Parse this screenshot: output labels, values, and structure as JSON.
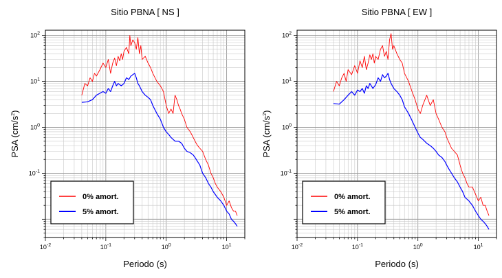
{
  "chart_data": [
    {
      "type": "line",
      "title": "Sitio PBNA [ NS ]",
      "xlabel": "Periodo (s)",
      "ylabel_main": "PSA (cm/s",
      "ylabel_sup": "2",
      "ylabel_tail": ")",
      "xscale": "log",
      "yscale": "log",
      "xlim": [
        0.01,
        20
      ],
      "ylim": [
        0.004,
        130
      ],
      "grid": true,
      "legend_position": "bottom-left",
      "xticks": [
        {
          "base": "10",
          "exp": "-2"
        },
        {
          "base": "10",
          "exp": "-1"
        },
        {
          "base": "10",
          "exp": "0"
        },
        {
          "base": "10",
          "exp": "1"
        }
      ],
      "yticks": [
        {
          "base": "10",
          "exp": "-1"
        },
        {
          "base": "10",
          "exp": "0"
        },
        {
          "base": "10",
          "exp": "1"
        },
        {
          "base": "10",
          "exp": "2"
        }
      ],
      "series": [
        {
          "name": "0% amort.",
          "color": "#ff0000",
          "x": [
            0.04,
            0.045,
            0.05,
            0.055,
            0.06,
            0.065,
            0.07,
            0.08,
            0.09,
            0.1,
            0.11,
            0.12,
            0.13,
            0.14,
            0.15,
            0.16,
            0.17,
            0.18,
            0.19,
            0.2,
            0.22,
            0.24,
            0.25,
            0.26,
            0.28,
            0.3,
            0.32,
            0.34,
            0.36,
            0.38,
            0.4,
            0.45,
            0.5,
            0.55,
            0.6,
            0.7,
            0.8,
            0.9,
            1.0,
            1.1,
            1.2,
            1.3,
            1.4,
            1.5,
            1.6,
            1.7,
            1.8,
            2.0,
            2.2,
            2.5,
            2.8,
            3.0,
            3.3,
            3.6,
            4.0,
            4.5,
            5.0,
            5.5,
            6.0,
            6.5,
            7.0,
            8.0,
            9.0,
            10,
            11,
            12,
            13,
            14,
            15
          ],
          "y": [
            5,
            9,
            8,
            12,
            10,
            15,
            13,
            18,
            25,
            20,
            30,
            15,
            25,
            32,
            22,
            35,
            28,
            40,
            30,
            45,
            55,
            40,
            100,
            60,
            80,
            70,
            50,
            90,
            40,
            60,
            30,
            35,
            25,
            20,
            15,
            10,
            8,
            6,
            3,
            2,
            2.5,
            2,
            5,
            4,
            3,
            2.5,
            2,
            1.5,
            1,
            0.8,
            0.6,
            0.5,
            0.4,
            0.35,
            0.3,
            0.2,
            0.15,
            0.1,
            0.08,
            0.06,
            0.05,
            0.04,
            0.03,
            0.02,
            0.025,
            0.018,
            0.015,
            0.015,
            0.012
          ]
        },
        {
          "name": "5% amort.",
          "color": "#0000ff",
          "x": [
            0.04,
            0.05,
            0.06,
            0.07,
            0.08,
            0.09,
            0.1,
            0.11,
            0.12,
            0.13,
            0.14,
            0.15,
            0.16,
            0.18,
            0.2,
            0.22,
            0.24,
            0.26,
            0.28,
            0.3,
            0.32,
            0.34,
            0.36,
            0.4,
            0.45,
            0.5,
            0.55,
            0.6,
            0.7,
            0.8,
            0.9,
            1.0,
            1.1,
            1.2,
            1.4,
            1.6,
            1.8,
            2.0,
            2.2,
            2.5,
            2.8,
            3.0,
            3.3,
            3.6,
            4.0,
            4.5,
            5.0,
            5.5,
            6.0,
            7.0,
            8.0,
            9.0,
            10,
            11,
            12,
            13,
            14,
            15
          ],
          "y": [
            3.5,
            3.6,
            4,
            5,
            5.5,
            6,
            5.5,
            7,
            6,
            8,
            10,
            8,
            9,
            8,
            9,
            12,
            11,
            13,
            14,
            15,
            12,
            9,
            8,
            6,
            5,
            4.5,
            4,
            3,
            2,
            1.5,
            1,
            0.8,
            0.7,
            0.6,
            0.5,
            0.5,
            0.45,
            0.35,
            0.3,
            0.28,
            0.25,
            0.22,
            0.18,
            0.15,
            0.1,
            0.08,
            0.06,
            0.05,
            0.04,
            0.03,
            0.025,
            0.02,
            0.015,
            0.013,
            0.01,
            0.009,
            0.008,
            0.007
          ]
        }
      ]
    },
    {
      "type": "line",
      "title": "Sitio PBNA [ EW ]",
      "xlabel": "Periodo (s)",
      "ylabel_main": "PSA (cm/s",
      "ylabel_sup": "2",
      "ylabel_tail": ")",
      "xscale": "log",
      "yscale": "log",
      "xlim": [
        0.01,
        20
      ],
      "ylim": [
        0.004,
        130
      ],
      "grid": true,
      "legend_position": "bottom-left",
      "xticks": [
        {
          "base": "10",
          "exp": "-2"
        },
        {
          "base": "10",
          "exp": "-1"
        },
        {
          "base": "10",
          "exp": "0"
        },
        {
          "base": "10",
          "exp": "1"
        }
      ],
      "yticks": [
        {
          "base": "10",
          "exp": "-1"
        },
        {
          "base": "10",
          "exp": "0"
        },
        {
          "base": "10",
          "exp": "1"
        },
        {
          "base": "10",
          "exp": "2"
        }
      ],
      "series": [
        {
          "name": "0% amort.",
          "color": "#ff0000",
          "x": [
            0.04,
            0.045,
            0.05,
            0.055,
            0.06,
            0.065,
            0.07,
            0.08,
            0.09,
            0.1,
            0.11,
            0.12,
            0.13,
            0.14,
            0.15,
            0.16,
            0.17,
            0.18,
            0.19,
            0.2,
            0.22,
            0.24,
            0.26,
            0.28,
            0.3,
            0.32,
            0.34,
            0.36,
            0.38,
            0.4,
            0.45,
            0.5,
            0.55,
            0.6,
            0.7,
            0.8,
            0.9,
            1.0,
            1.1,
            1.2,
            1.4,
            1.6,
            1.8,
            2.0,
            2.2,
            2.5,
            2.8,
            3.0,
            3.3,
            3.6,
            4.0,
            4.5,
            5.0,
            5.5,
            6.0,
            6.5,
            7.0,
            8.0,
            9.0,
            10,
            11,
            12,
            13,
            14,
            15
          ],
          "y": [
            6,
            10,
            8,
            12,
            15,
            10,
            18,
            14,
            22,
            15,
            28,
            20,
            35,
            18,
            25,
            38,
            30,
            40,
            25,
            35,
            30,
            50,
            60,
            35,
            45,
            30,
            80,
            110,
            50,
            60,
            40,
            30,
            25,
            15,
            10,
            6,
            4,
            2.5,
            2,
            3,
            5,
            3,
            4,
            2,
            1.5,
            1,
            0.8,
            0.6,
            0.45,
            0.35,
            0.3,
            0.25,
            0.15,
            0.1,
            0.08,
            0.06,
            0.05,
            0.05,
            0.035,
            0.025,
            0.03,
            0.02,
            0.02,
            0.015,
            0.012
          ]
        },
        {
          "name": "5% amort.",
          "color": "#0000ff",
          "x": [
            0.04,
            0.05,
            0.06,
            0.07,
            0.08,
            0.09,
            0.1,
            0.11,
            0.12,
            0.13,
            0.14,
            0.15,
            0.16,
            0.18,
            0.2,
            0.22,
            0.24,
            0.26,
            0.28,
            0.3,
            0.32,
            0.34,
            0.36,
            0.4,
            0.45,
            0.5,
            0.55,
            0.6,
            0.7,
            0.8,
            0.9,
            1.0,
            1.1,
            1.2,
            1.4,
            1.6,
            1.8,
            2.0,
            2.2,
            2.5,
            2.8,
            3.0,
            3.3,
            3.6,
            4.0,
            4.5,
            5.0,
            5.5,
            6.0,
            7.0,
            8.0,
            9.0,
            10,
            11,
            12,
            13,
            14,
            15
          ],
          "y": [
            3.3,
            3.2,
            4,
            5,
            6,
            5,
            6.5,
            6,
            7,
            5.5,
            8,
            7,
            9,
            7,
            8.5,
            12,
            10,
            14,
            12,
            13,
            15,
            11,
            9,
            7,
            6,
            5,
            4,
            2.8,
            2,
            1.4,
            1,
            0.75,
            0.6,
            0.55,
            0.45,
            0.4,
            0.35,
            0.3,
            0.25,
            0.22,
            0.18,
            0.15,
            0.12,
            0.1,
            0.08,
            0.065,
            0.05,
            0.04,
            0.03,
            0.025,
            0.02,
            0.015,
            0.012,
            0.01,
            0.009,
            0.008,
            0.007,
            0.006
          ]
        }
      ]
    }
  ]
}
